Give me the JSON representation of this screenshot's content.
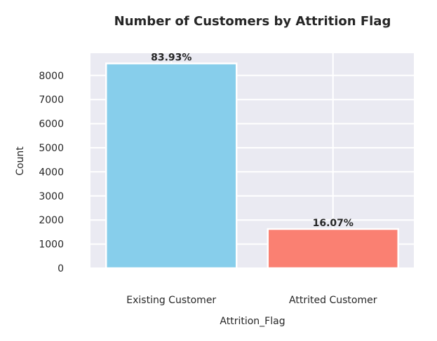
{
  "chart_data": {
    "type": "bar",
    "title": "Number of Customers by Attrition Flag",
    "xlabel": "Attrition_Flag",
    "ylabel": "Count",
    "categories": [
      "Existing Customer",
      "Attrited Customer"
    ],
    "values": [
      8500,
      1627
    ],
    "bar_labels": [
      "83.93%",
      "16.07%"
    ],
    "colors": [
      "#87ceeb",
      "#fa8072"
    ],
    "ylim": [
      0,
      8900
    ],
    "yticks": [
      0,
      1000,
      2000,
      3000,
      4000,
      5000,
      6000,
      7000,
      8000
    ],
    "grid": true,
    "style": {
      "plot_background": "#eaeaf2",
      "grid_color": "#ffffff"
    }
  }
}
